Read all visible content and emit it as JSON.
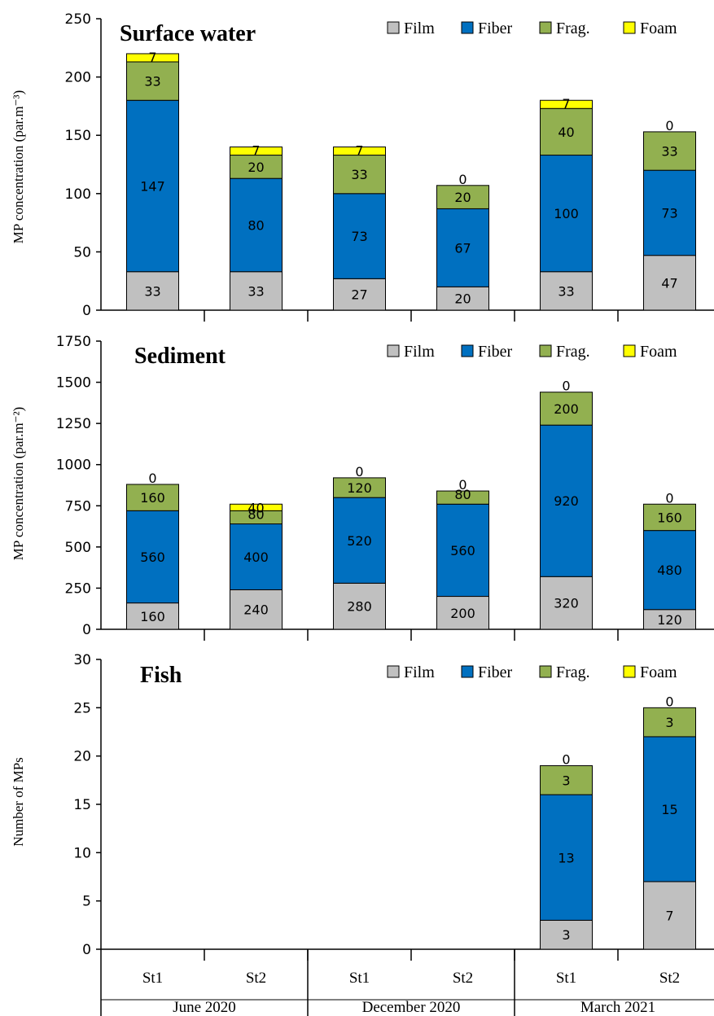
{
  "colors": {
    "Film": "#c0c0c0",
    "Fiber": "#0070c0",
    "Frag.": "#92b050",
    "Foam": "#ffff00"
  },
  "chart_data": [
    {
      "type": "bar",
      "stacked": true,
      "title": "Surface water",
      "ylabel": "MP concentration (par.m⁻³)",
      "ylim": [
        0,
        250
      ],
      "yticks": [
        0,
        50,
        100,
        150,
        200,
        250
      ],
      "legend_position": "top-right",
      "categories": [
        "St1",
        "St2",
        "St1",
        "St2",
        "St1",
        "St2"
      ],
      "groups": [
        "June 2020",
        "December 2020",
        "March 2021"
      ],
      "series": [
        {
          "name": "Film",
          "values": [
            33,
            33,
            27,
            20,
            33,
            47
          ]
        },
        {
          "name": "Fiber",
          "values": [
            147,
            80,
            73,
            67,
            100,
            73
          ]
        },
        {
          "name": "Frag.",
          "values": [
            33,
            20,
            33,
            20,
            40,
            33
          ]
        },
        {
          "name": "Foam",
          "values": [
            7,
            7,
            7,
            0,
            7,
            0
          ]
        }
      ]
    },
    {
      "type": "bar",
      "stacked": true,
      "title": "Sediment",
      "ylabel": "MP concentration (par.m⁻²)",
      "ylim": [
        0,
        1750
      ],
      "yticks": [
        0,
        250,
        500,
        750,
        1000,
        1250,
        1500,
        1750
      ],
      "legend_position": "top-right",
      "categories": [
        "St1",
        "St2",
        "St1",
        "St2",
        "St1",
        "St2"
      ],
      "groups": [
        "June 2020",
        "December 2020",
        "March 2021"
      ],
      "series": [
        {
          "name": "Film",
          "values": [
            160,
            240,
            280,
            200,
            320,
            120
          ]
        },
        {
          "name": "Fiber",
          "values": [
            560,
            400,
            520,
            560,
            920,
            480
          ]
        },
        {
          "name": "Frag.",
          "values": [
            160,
            80,
            120,
            80,
            200,
            160
          ]
        },
        {
          "name": "Foam",
          "values": [
            0,
            40,
            0,
            0,
            0,
            0
          ]
        }
      ]
    },
    {
      "type": "bar",
      "stacked": true,
      "title": "Fish",
      "ylabel": "Number of MPs",
      "ylim": [
        0,
        30
      ],
      "yticks": [
        0,
        5,
        10,
        15,
        20,
        25,
        30
      ],
      "legend_position": "top-right",
      "categories": [
        "St1",
        "St2",
        "St1",
        "St2",
        "St1",
        "St2"
      ],
      "groups": [
        "June 2020",
        "December 2020",
        "March 2021"
      ],
      "series": [
        {
          "name": "Film",
          "values": [
            null,
            null,
            null,
            null,
            3,
            7
          ]
        },
        {
          "name": "Fiber",
          "values": [
            null,
            null,
            null,
            null,
            13,
            15
          ]
        },
        {
          "name": "Frag.",
          "values": [
            null,
            null,
            null,
            null,
            3,
            3
          ]
        },
        {
          "name": "Foam",
          "values": [
            null,
            null,
            null,
            null,
            0,
            0
          ]
        }
      ]
    }
  ]
}
